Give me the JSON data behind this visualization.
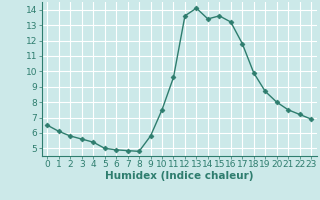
{
  "x": [
    0,
    1,
    2,
    3,
    4,
    5,
    6,
    7,
    8,
    9,
    10,
    11,
    12,
    13,
    14,
    15,
    16,
    17,
    18,
    19,
    20,
    21,
    22,
    23
  ],
  "y": [
    6.5,
    6.1,
    5.8,
    5.6,
    5.4,
    5.0,
    4.9,
    4.85,
    4.8,
    5.8,
    7.5,
    9.6,
    13.6,
    14.1,
    13.4,
    13.6,
    13.2,
    11.8,
    9.9,
    8.7,
    8.0,
    7.5,
    7.2,
    6.9
  ],
  "line_color": "#2e7d6e",
  "marker": "D",
  "marker_size": 2.5,
  "bg_color": "#cce9e9",
  "grid_color": "#ffffff",
  "xlabel": "Humidex (Indice chaleur)",
  "xlim": [
    -0.5,
    23.5
  ],
  "ylim": [
    4.5,
    14.5
  ],
  "yticks": [
    5,
    6,
    7,
    8,
    9,
    10,
    11,
    12,
    13,
    14
  ],
  "xticks": [
    0,
    1,
    2,
    3,
    4,
    5,
    6,
    7,
    8,
    9,
    10,
    11,
    12,
    13,
    14,
    15,
    16,
    17,
    18,
    19,
    20,
    21,
    22,
    23
  ],
  "tick_color": "#2e7d6e",
  "label_color": "#2e7d6e",
  "font_size": 6.5,
  "xlabel_fontsize": 7.5,
  "linewidth": 1.0
}
